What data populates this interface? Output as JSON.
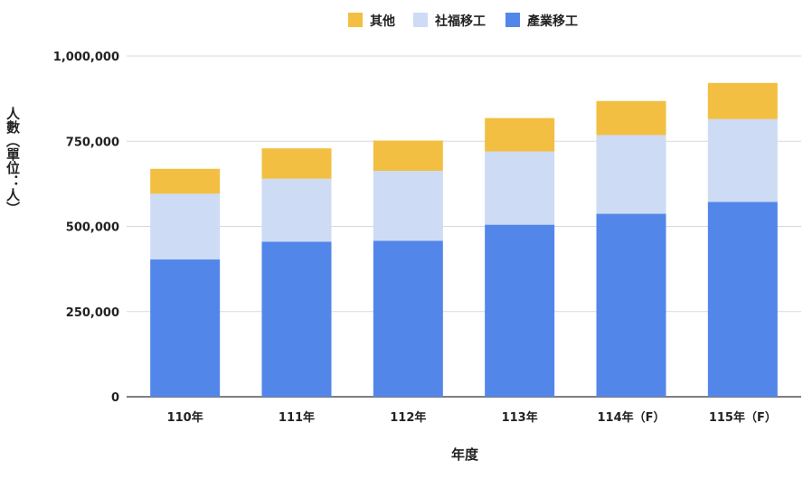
{
  "chart_data": {
    "type": "bar",
    "stacked": true,
    "categories": [
      "110年",
      "111年",
      "112年",
      "113年",
      "114年（F）",
      "115年（F）"
    ],
    "series": [
      {
        "name": "產業移工",
        "color": "#5386e9",
        "values": [
          403000,
          455000,
          458000,
          505000,
          537000,
          572000
        ]
      },
      {
        "name": "社福移工",
        "color": "#cddbf5",
        "values": [
          193000,
          185000,
          205000,
          215000,
          231000,
          243000
        ]
      },
      {
        "name": "其他",
        "color": "#f2bf42",
        "values": [
          73000,
          89000,
          89000,
          98000,
          100000,
          106000
        ]
      }
    ],
    "legend_order": [
      "其他",
      "社福移工",
      "產業移工"
    ],
    "legend_position": "top",
    "xlabel": "年度",
    "ylabel": "人數（單位：人）",
    "ylim": [
      0,
      1000000
    ],
    "yticks": [
      0,
      250000,
      500000,
      750000,
      1000000
    ],
    "ytick_labels": [
      "0",
      "250,000",
      "500,000",
      "750,000",
      "1,000,000"
    ],
    "grid": true
  }
}
